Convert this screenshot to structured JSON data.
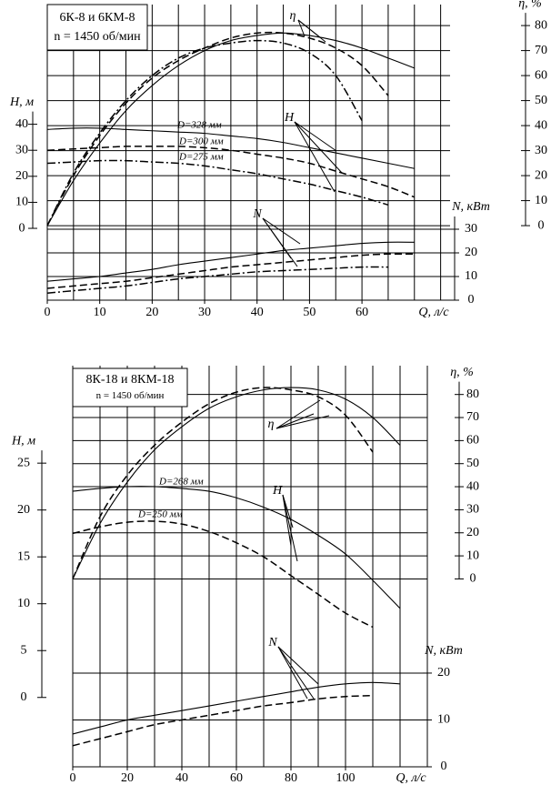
{
  "chart_data": [
    {
      "type": "line",
      "title": "6К-8 и 6КМ-8",
      "subtitle": "n = 1450 об/мин",
      "x_label": "Q, л/с",
      "y_label": "H, м",
      "y2_label": "η, %",
      "y3_label": "N, кВт",
      "annotations": [
        "η",
        "H",
        "N"
      ],
      "xlim": [
        0,
        76.8
      ],
      "xticks": [
        0,
        10,
        20,
        30,
        40,
        50,
        60
      ],
      "xgrid": [
        0,
        5,
        10,
        15,
        20,
        25,
        30,
        35,
        40,
        45,
        50,
        55,
        60,
        65,
        70,
        75
      ],
      "ylim": [
        -27.6,
        86
      ],
      "yticks": [
        0,
        10,
        20,
        30,
        40
      ],
      "y2lim": [
        -29.8,
        88.4
      ],
      "y2ticks": [
        0,
        10,
        20,
        30,
        40,
        50,
        60,
        70,
        80
      ],
      "y3lim": [
        0,
        125
      ],
      "y3ticks": [
        0,
        10,
        20,
        30
      ],
      "grid": true,
      "x": [
        0,
        5,
        10,
        15,
        20,
        25,
        30,
        35,
        40,
        45,
        50,
        55,
        60,
        65,
        70
      ],
      "series": [
        {
          "axis": "y2",
          "style": "solid",
          "color": "#000",
          "values": [
            0,
            18,
            33,
            46,
            56,
            64,
            70,
            74,
            76,
            77,
            76,
            74,
            71,
            67,
            63
          ]
        },
        {
          "axis": "y2",
          "style": "dashed",
          "color": "#000",
          "values": [
            0,
            20,
            36,
            49,
            59,
            66,
            71,
            75,
            77,
            77,
            75,
            71,
            64,
            52,
            null
          ]
        },
        {
          "axis": "y2",
          "style": "dashdot",
          "color": "#000",
          "values": [
            0,
            21,
            37,
            50,
            60,
            67,
            71,
            73,
            74,
            73,
            69,
            60,
            42,
            null,
            null
          ]
        },
        {
          "axis": "y",
          "name": "D=328 мм",
          "style": "solid",
          "color": "#000",
          "values": [
            38,
            38.5,
            38.5,
            38,
            37.5,
            37,
            36.5,
            35.5,
            34.5,
            33,
            31,
            29,
            27,
            25,
            23
          ]
        },
        {
          "axis": "y",
          "name": "D=300 мм",
          "style": "dashed",
          "color": "#000",
          "values": [
            30,
            30.5,
            31,
            31.5,
            31.5,
            31.5,
            31,
            30,
            28.5,
            27,
            25,
            22,
            19,
            16,
            12
          ]
        },
        {
          "axis": "y",
          "name": "D=275 мм",
          "style": "dashdot",
          "color": "#000",
          "values": [
            25,
            25.5,
            26,
            26,
            25.5,
            25,
            24,
            22.5,
            21,
            19,
            17,
            14.5,
            12,
            9,
            null
          ]
        },
        {
          "axis": "y3",
          "style": "solid",
          "color": "#000",
          "values": [
            8,
            9,
            10,
            11.5,
            13,
            15,
            16.5,
            18,
            19.5,
            21,
            22,
            23,
            24,
            24.5,
            24.5
          ]
        },
        {
          "axis": "y3",
          "style": "dashed",
          "color": "#000",
          "values": [
            5,
            6,
            7,
            8,
            9.5,
            11,
            12.5,
            14,
            15,
            16,
            17,
            18,
            19,
            19.5,
            19.5
          ]
        },
        {
          "axis": "y3",
          "style": "dashdot",
          "color": "#000",
          "values": [
            3,
            4,
            5,
            6,
            7.5,
            9,
            10,
            11,
            12,
            12.5,
            13,
            13.5,
            14,
            14,
            null
          ]
        }
      ]
    },
    {
      "type": "line",
      "title": "8К-18 и 8КМ-18",
      "subtitle": "n = 1450 об/мин",
      "x_label": "Q, л/с",
      "y_label": "H, м",
      "y2_label": "η, %",
      "y3_label": "N, кВт",
      "annotations": [
        "η",
        "H",
        "N"
      ],
      "xlim": [
        0,
        130
      ],
      "xticks": [
        0,
        20,
        40,
        60,
        80,
        100
      ],
      "xgrid": [
        0,
        10,
        20,
        30,
        40,
        50,
        60,
        70,
        80,
        90,
        100,
        110,
        120,
        130
      ],
      "ylim": [
        -7.4,
        35.4
      ],
      "yticks": [
        0,
        5,
        10,
        15,
        20,
        25
      ],
      "y2lim": [
        -81.5,
        92.5
      ],
      "y2ticks": [
        0,
        10,
        20,
        30,
        40,
        50,
        60,
        70,
        80
      ],
      "y3lim": [
        0,
        85.6
      ],
      "y3ticks": [
        0,
        10,
        20
      ],
      "grid": true,
      "x": [
        0,
        10,
        20,
        30,
        40,
        50,
        60,
        70,
        80,
        90,
        100,
        110,
        120
      ],
      "series": [
        {
          "axis": "y2",
          "style": "solid",
          "color": "#000",
          "values": [
            0,
            24,
            42,
            56,
            66,
            74,
            79,
            82,
            83,
            82,
            78,
            70,
            58
          ]
        },
        {
          "axis": "y2",
          "style": "dashed",
          "color": "#000",
          "values": [
            0,
            27,
            45,
            58,
            68,
            76,
            81,
            83,
            82,
            79,
            71,
            55,
            null
          ]
        },
        {
          "axis": "y",
          "name": "D=268 мм",
          "style": "solid",
          "color": "#000",
          "values": [
            22,
            22.3,
            22.5,
            22.5,
            22.3,
            22,
            21.3,
            20.3,
            19,
            17.3,
            15.3,
            12.5,
            9.5
          ]
        },
        {
          "axis": "y",
          "name": "D=250 мм",
          "style": "dashed",
          "color": "#000",
          "values": [
            17.5,
            18.2,
            18.7,
            18.8,
            18.5,
            17.7,
            16.5,
            15,
            13,
            11,
            9,
            7.5,
            null
          ]
        },
        {
          "axis": "y3",
          "style": "solid",
          "color": "#000",
          "values": [
            7,
            8.5,
            10,
            11,
            12,
            13,
            14,
            15,
            16,
            17,
            17.7,
            18,
            17.7
          ]
        },
        {
          "axis": "y3",
          "style": "dashed",
          "color": "#000",
          "values": [
            4.5,
            6,
            7.5,
            9,
            10,
            11,
            12,
            13,
            13.7,
            14.5,
            15,
            15.2,
            null
          ]
        }
      ]
    }
  ]
}
